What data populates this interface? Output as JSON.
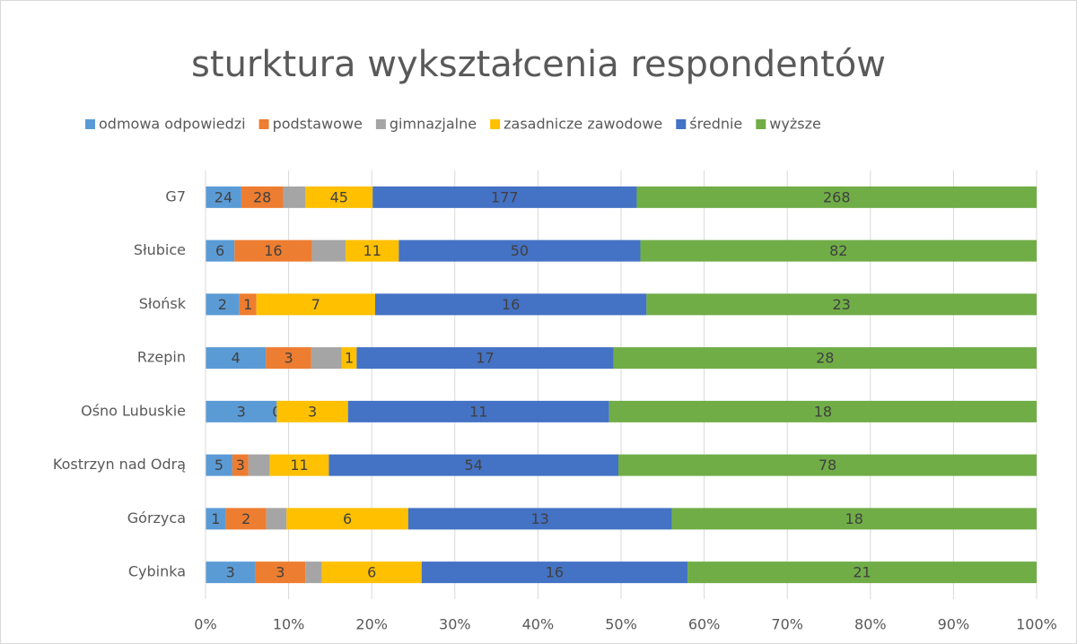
{
  "chart_data": {
    "type": "stacked_bar_100",
    "orientation": "horizontal",
    "title": "sturktura wykształcenia respondentów",
    "categories": [
      "G7",
      "Słubice",
      "Słońsk",
      "Rzepin",
      "Ośno Lubuskie",
      "Kostrzyn nad Odrą",
      "Górzyca",
      "Cybinka"
    ],
    "series": [
      {
        "name": "odmowa odpowiedzi",
        "color": "#5b9bd5",
        "values": [
          24,
          6,
          2,
          4,
          3,
          5,
          1,
          3
        ],
        "data_labels": true
      },
      {
        "name": "podstawowe",
        "color": "#ed7d31",
        "values": [
          28,
          16,
          1,
          3,
          0,
          3,
          2,
          3
        ],
        "data_labels": true
      },
      {
        "name": "gimnazjalne",
        "color": "#a5a5a5",
        "values": [
          15,
          7,
          0,
          2,
          0,
          4,
          1,
          1
        ],
        "data_labels": false
      },
      {
        "name": "zasadnicze zawodowe",
        "color": "#ffc000",
        "values": [
          45,
          11,
          7,
          1,
          3,
          11,
          6,
          6
        ],
        "data_labels": true
      },
      {
        "name": "średnie",
        "color": "#4472c4",
        "values": [
          177,
          50,
          16,
          17,
          11,
          54,
          13,
          16
        ],
        "data_labels": true
      },
      {
        "name": "wyższe",
        "color": "#70ad47",
        "values": [
          268,
          82,
          23,
          28,
          18,
          78,
          18,
          21
        ],
        "data_labels": true
      }
    ],
    "xlim": [
      0,
      100
    ],
    "xticks": [
      {
        "value": 0,
        "label": "0%"
      },
      {
        "value": 10,
        "label": "10%"
      },
      {
        "value": 20,
        "label": "20%"
      },
      {
        "value": 30,
        "label": "30%"
      },
      {
        "value": 40,
        "label": "40%"
      },
      {
        "value": 50,
        "label": "50%"
      },
      {
        "value": 60,
        "label": "60%"
      },
      {
        "value": 70,
        "label": "70%"
      },
      {
        "value": 80,
        "label": "80%"
      },
      {
        "value": 90,
        "label": "90%"
      },
      {
        "value": 100,
        "label": "100%"
      }
    ],
    "grid": true,
    "legend": "top"
  }
}
